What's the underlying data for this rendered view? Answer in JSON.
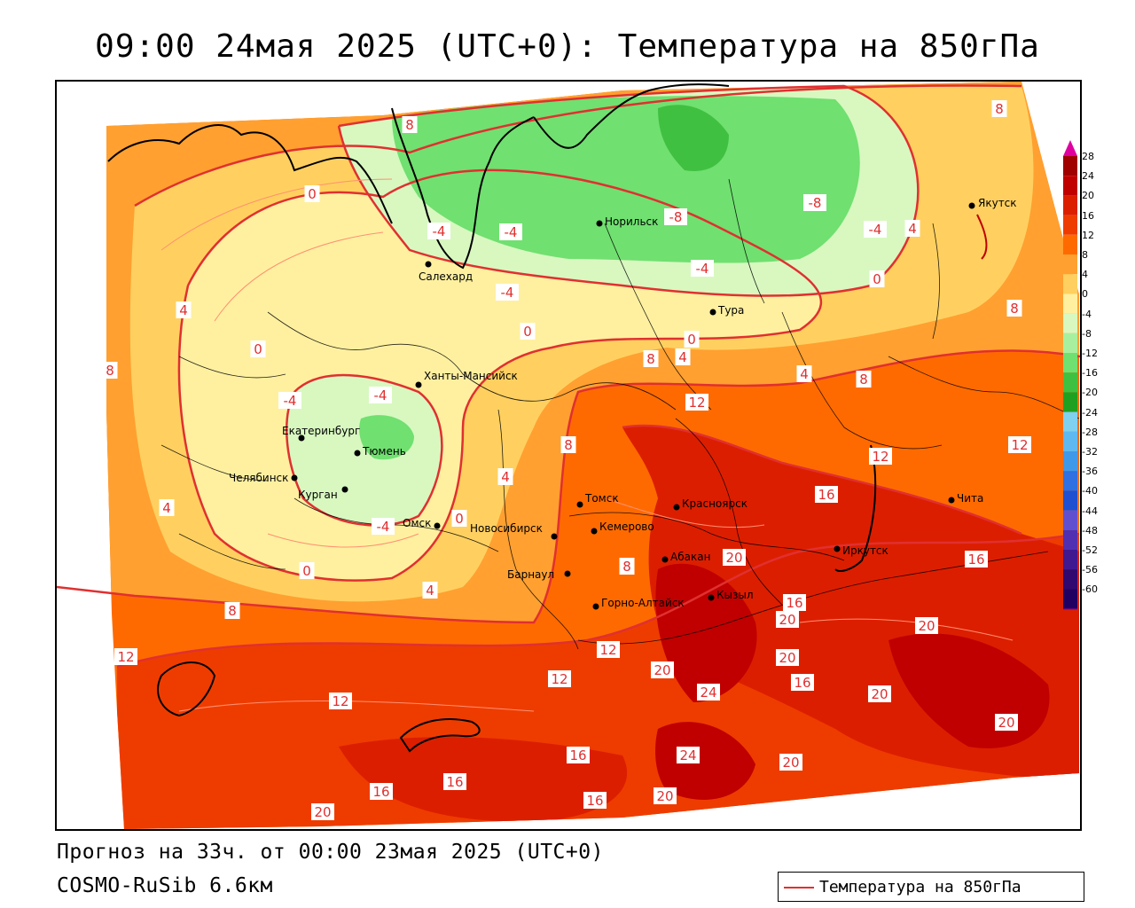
{
  "title": "09:00 24мая 2025 (UTC+0): Температура на 850гПа",
  "footer": {
    "forecast": "Прогноз на 33ч. от 00:00 23мая 2025 (UTC+0)",
    "model": "COSMO-RuSib 6.6км"
  },
  "legend": {
    "label": "Температура на 850гПа",
    "line_color": "#e03030"
  },
  "colorbar": {
    "ticks": [
      "28",
      "24",
      "20",
      "16",
      "12",
      "8",
      "4",
      "0",
      "-4",
      "-8",
      "-12",
      "-16",
      "-20",
      "-24",
      "-28",
      "-32",
      "-36",
      "-40",
      "-44",
      "-48",
      "-52",
      "-56",
      "-60"
    ],
    "colors": [
      "#a00000",
      "#c00000",
      "#dc1e00",
      "#ee3c00",
      "#ff6a00",
      "#ffa030",
      "#ffd060",
      "#fff0a0",
      "#d8f8c0",
      "#a8f0a0",
      "#70e070",
      "#40c040",
      "#20a020",
      "#80d0f0",
      "#60b8f0",
      "#4098e8",
      "#3070e0",
      "#2050d0",
      "#6050d0",
      "#5030b0",
      "#401890",
      "#300870",
      "#200060"
    ],
    "top_arrow_color": "#e000a0",
    "bottom_arrow_color": "#a000c0"
  },
  "cities": [
    {
      "name": "Якутск"
    },
    {
      "name": "Норильск"
    },
    {
      "name": "Салехард"
    },
    {
      "name": "Тура"
    },
    {
      "name": "Ханты-Мансийск"
    },
    {
      "name": "Екатеринбург"
    },
    {
      "name": "Тюмень"
    },
    {
      "name": "Челябинск"
    },
    {
      "name": "Курган"
    },
    {
      "name": "Омск"
    },
    {
      "name": "Новосибирск"
    },
    {
      "name": "Томск"
    },
    {
      "name": "Кемерово"
    },
    {
      "name": "Красноярск"
    },
    {
      "name": "Барнаул"
    },
    {
      "name": "Абакан"
    },
    {
      "name": "Горно-Алтайск"
    },
    {
      "name": "Кызыл"
    },
    {
      "name": "Иркутск"
    },
    {
      "name": "Чита"
    }
  ],
  "isotherm_labels": [
    "8",
    "8",
    "0",
    "-4",
    "-8",
    "-4",
    "0",
    "-4",
    "-8",
    "-4",
    "4",
    "4",
    "8",
    "8",
    "0",
    "4",
    "-4",
    "-4",
    "0",
    "8",
    "4",
    "0",
    "4",
    "8",
    "12",
    "-4",
    "8",
    "4",
    "12",
    "12",
    "16",
    "4",
    "-4",
    "0",
    "16",
    "20",
    "0",
    "8",
    "8",
    "20",
    "12",
    "20",
    "16",
    "20",
    "12",
    "12",
    "20",
    "16",
    "20",
    "16",
    "24",
    "12",
    "20",
    "24",
    "16",
    "20",
    "16",
    "20",
    "16",
    "20"
  ],
  "colors": {
    "isotherm_line": "#e03030",
    "label_background": "#ffffff"
  }
}
